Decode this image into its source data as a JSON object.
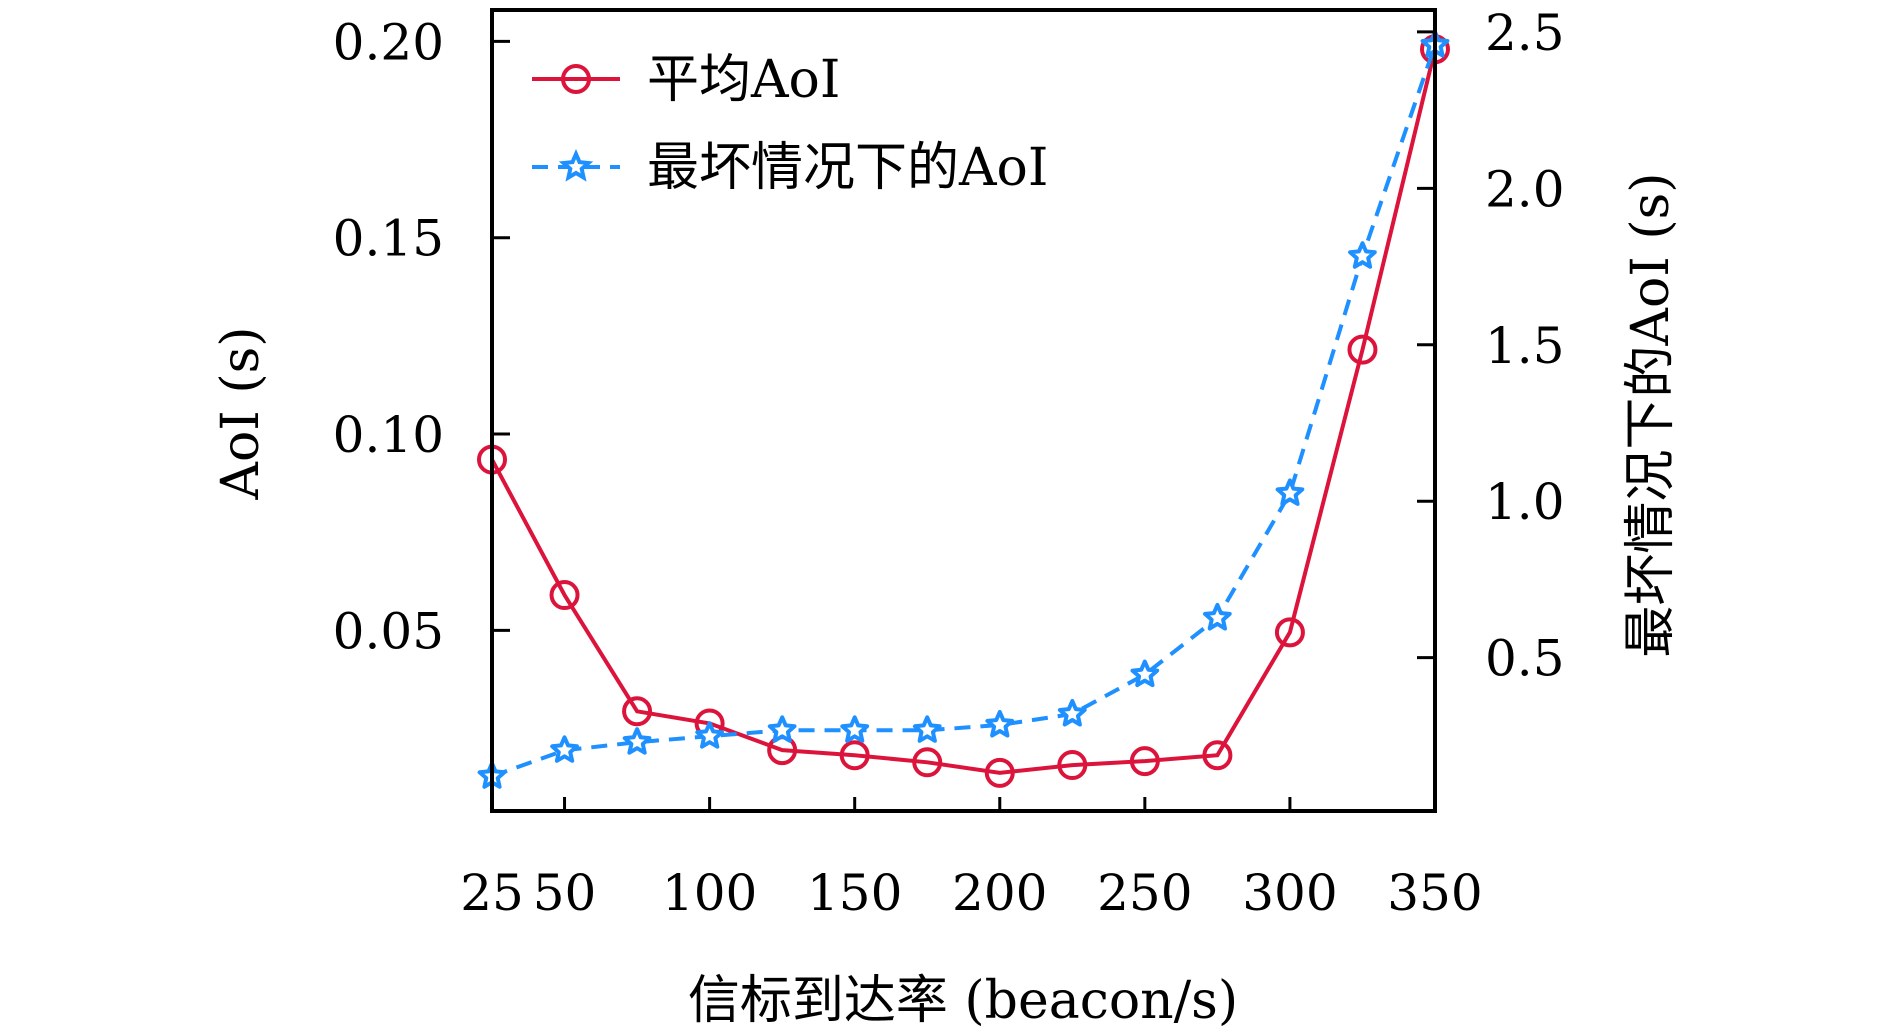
{
  "chart_data": {
    "type": "line",
    "title": "",
    "xlabel": "信标到达率 (beacon/s)",
    "ylabel": "AoI (s)",
    "y2label": "最坏情况下的AoI (s)",
    "xlim": [
      25,
      350
    ],
    "ylim": [
      0.004,
      0.208
    ],
    "y2lim": [
      0.01,
      2.57
    ],
    "xticks": [
      25,
      50,
      100,
      150,
      200,
      250,
      300,
      350
    ],
    "xtick_labels": [
      "25",
      "50",
      "100",
      "150",
      "200",
      "250",
      "300",
      "350"
    ],
    "yticks": [
      0.05,
      0.1,
      0.15,
      0.2
    ],
    "ytick_labels": [
      "0.05",
      "0.10",
      "0.15",
      "0.20"
    ],
    "y2ticks": [
      0.5,
      1.0,
      1.5,
      2.0,
      2.5
    ],
    "y2tick_labels": [
      "0.5",
      "1.0",
      "1.5",
      "2.0",
      "2.5"
    ],
    "grid": false,
    "legend_position": "top-left",
    "x": [
      25,
      50,
      75,
      100,
      125,
      150,
      175,
      200,
      225,
      250,
      275,
      300,
      325,
      350
    ],
    "series": [
      {
        "name": "平均AoI",
        "axis": "left",
        "color": "#DC143C",
        "marker": "circle",
        "linestyle": "solid",
        "values": [
          0.0935,
          0.059,
          0.0294,
          0.0263,
          0.0195,
          0.0182,
          0.0164,
          0.0137,
          0.0157,
          0.0167,
          0.0182,
          0.0495,
          0.1215,
          0.198
        ]
      },
      {
        "name": "最坏情况下的AoI",
        "axis": "right",
        "color": "#1E90FF",
        "marker": "star",
        "linestyle": "dashed",
        "values": [
          0.121,
          0.204,
          0.23,
          0.249,
          0.268,
          0.268,
          0.268,
          0.285,
          0.32,
          0.446,
          0.627,
          1.025,
          1.783,
          2.458
        ]
      }
    ]
  }
}
